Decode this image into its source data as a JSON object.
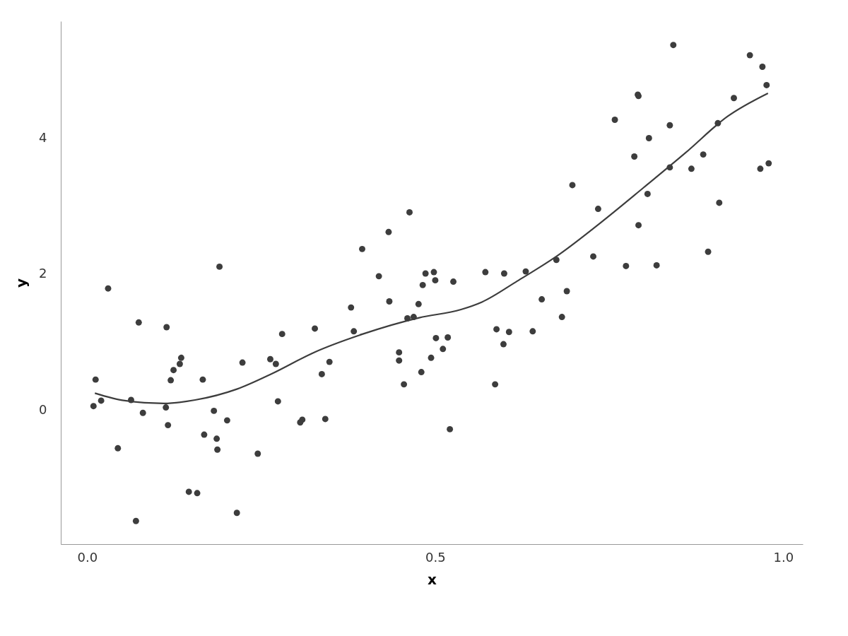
{
  "chart_data": {
    "type": "scatter",
    "xlabel": "x",
    "ylabel": "y",
    "xlim": [
      -0.038,
      1.028
    ],
    "ylim": [
      -1.97,
      5.72
    ],
    "xticks": [
      {
        "value": 0,
        "label": "0.0"
      },
      {
        "value": 0.5,
        "label": "0.5"
      },
      {
        "value": 1,
        "label": "1.0"
      }
    ],
    "yticks": [
      0,
      2,
      4
    ],
    "grid": false,
    "marker": "circle",
    "series": [
      {
        "color": "#3d3d3d",
        "x": [
          0.009,
          0.012,
          0.02,
          0.03,
          0.044,
          0.063,
          0.07,
          0.074,
          0.08,
          0.113,
          0.114,
          0.116,
          0.12,
          0.124,
          0.133,
          0.135,
          0.146,
          0.158,
          0.166,
          0.168,
          0.182,
          0.186,
          0.187,
          0.19,
          0.201,
          0.215,
          0.223,
          0.245,
          0.263,
          0.271,
          0.274,
          0.28,
          0.306,
          0.309,
          0.327,
          0.337,
          0.342,
          0.348,
          0.379,
          0.383,
          0.395,
          0.419,
          0.433,
          0.434,
          0.448,
          0.448,
          0.455,
          0.46,
          0.463,
          0.469,
          0.476,
          0.48,
          0.482,
          0.486,
          0.494,
          0.498,
          0.5,
          0.501,
          0.511,
          0.518,
          0.521,
          0.526,
          0.572,
          0.586,
          0.588,
          0.598,
          0.599,
          0.606,
          0.63,
          0.64,
          0.653,
          0.674,
          0.682,
          0.689,
          0.697,
          0.727,
          0.734,
          0.758,
          0.774,
          0.786,
          0.791,
          0.792,
          0.792,
          0.805,
          0.807,
          0.818,
          0.837,
          0.837,
          0.842,
          0.868,
          0.885,
          0.892,
          0.906,
          0.908,
          0.929,
          0.952,
          0.967,
          0.97,
          0.976,
          0.979
        ],
        "values": [
          0.06,
          0.45,
          0.14,
          1.79,
          -0.56,
          0.15,
          -1.63,
          1.29,
          -0.04,
          0.04,
          1.22,
          -0.22,
          0.44,
          0.59,
          0.68,
          0.77,
          -1.2,
          -1.22,
          0.45,
          -0.36,
          -0.01,
          -0.42,
          -0.58,
          2.11,
          -0.15,
          -1.51,
          0.7,
          -0.64,
          0.75,
          0.68,
          0.13,
          1.12,
          -0.18,
          -0.14,
          1.2,
          0.53,
          -0.13,
          0.71,
          1.51,
          1.16,
          2.37,
          1.97,
          2.62,
          1.6,
          0.85,
          0.73,
          0.38,
          1.35,
          2.91,
          1.37,
          1.56,
          0.56,
          1.84,
          2.01,
          0.77,
          2.03,
          1.91,
          1.06,
          0.9,
          1.07,
          -0.28,
          1.89,
          2.03,
          0.38,
          1.19,
          0.97,
          2.01,
          1.15,
          2.04,
          1.16,
          1.63,
          2.21,
          1.37,
          1.75,
          3.31,
          2.26,
          2.96,
          4.27,
          2.12,
          3.73,
          4.64,
          4.62,
          2.72,
          3.18,
          4.0,
          2.13,
          4.19,
          3.57,
          5.37,
          3.55,
          3.76,
          2.33,
          4.22,
          3.05,
          4.59,
          5.22,
          3.55,
          5.05,
          4.78,
          3.63
        ]
      },
      {
        "type": "line",
        "color": "#3d3d3d",
        "marker": "none",
        "line_style": "solid",
        "x": [
          0.011,
          0.054,
          0.11,
          0.155,
          0.215,
          0.266,
          0.326,
          0.396,
          0.477,
          0.537,
          0.567,
          0.618,
          0.678,
          0.738,
          0.799,
          0.859,
          0.92,
          0.978
        ],
        "values": [
          0.25,
          0.14,
          0.1,
          0.15,
          0.31,
          0.54,
          0.85,
          1.12,
          1.36,
          1.48,
          1.59,
          1.9,
          2.29,
          2.76,
          3.27,
          3.78,
          4.32,
          4.66
        ]
      }
    ]
  }
}
